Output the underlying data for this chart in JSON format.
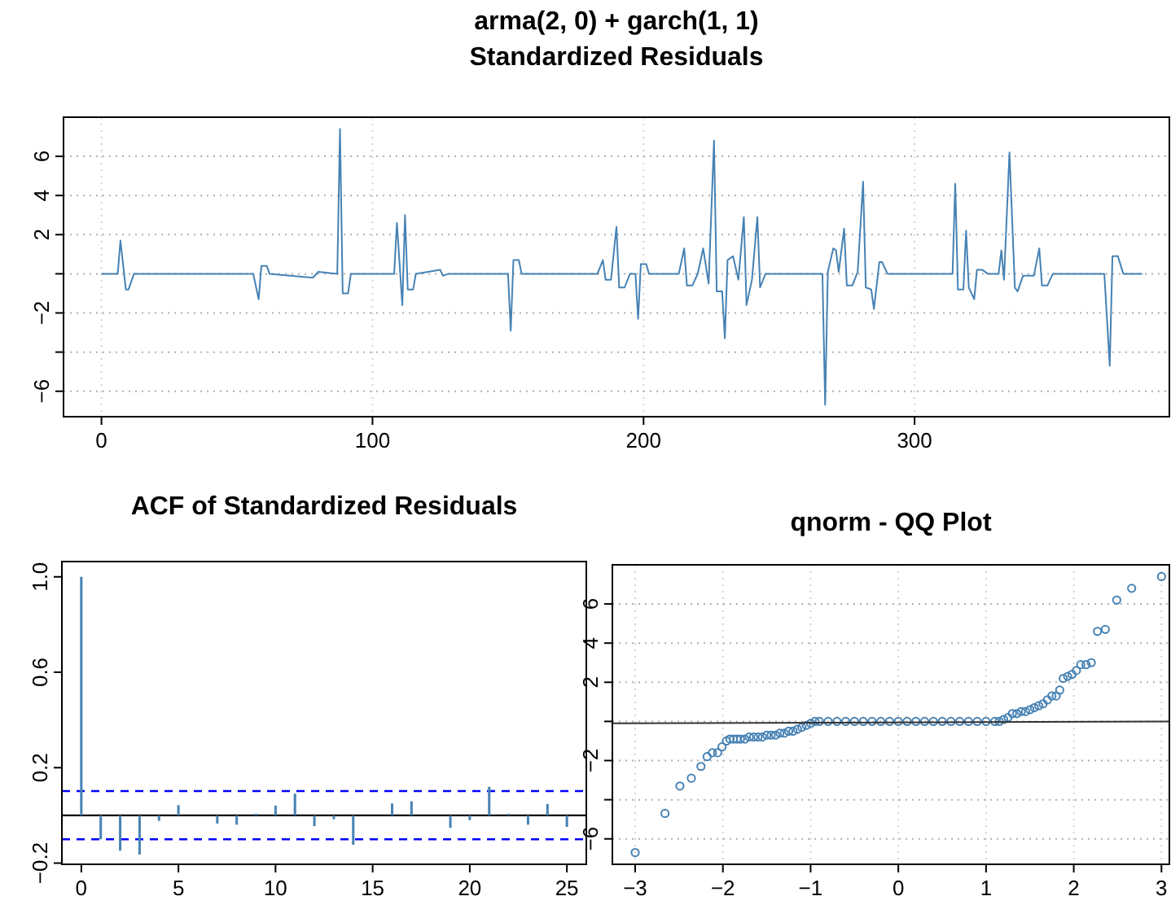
{
  "chart_data": [
    {
      "type": "line",
      "title": "arma(2, 0) + garch(1, 1)\nStandardized Residuals",
      "xlim": [
        -14,
        394
      ],
      "ylim": [
        -7.3,
        8.0
      ],
      "xticks": [
        0,
        100,
        200,
        300
      ],
      "yticks": [
        -6,
        {
          "value": -4,
          "label": null
        },
        -2,
        {
          "value": 0,
          "label": null
        },
        2,
        4,
        6
      ],
      "grid": true,
      "series": [
        {
          "color": "#4682b4",
          "x": [
            0,
            6,
            7,
            9,
            10,
            12,
            56,
            58,
            59,
            61,
            62,
            78,
            80,
            87,
            88,
            89,
            91,
            92,
            108,
            109,
            111,
            112,
            113,
            115,
            116,
            125,
            126,
            128,
            150,
            151,
            152,
            154,
            155,
            183,
            185,
            186,
            188,
            190,
            191,
            193,
            195,
            197,
            198,
            199,
            201,
            202,
            213,
            215,
            216,
            218,
            220,
            222,
            224,
            226,
            227,
            229,
            230,
            231,
            233,
            235,
            237,
            238,
            240,
            242,
            243,
            245,
            247,
            266,
            267,
            268,
            270,
            271,
            272,
            274,
            275,
            277,
            279,
            281,
            282,
            284,
            285,
            287,
            288,
            290,
            314,
            315,
            316,
            318,
            319,
            320,
            322,
            323,
            325,
            327,
            331,
            332,
            333,
            335,
            337,
            338,
            340,
            344,
            346,
            347,
            349,
            351,
            370,
            372,
            373,
            375,
            377,
            384
          ],
          "values": [
            0,
            0,
            1.7,
            -0.8,
            -0.8,
            0,
            0,
            -1.3,
            0.4,
            0.4,
            0,
            -0.2,
            0.1,
            0,
            7.4,
            -1.0,
            -1.0,
            0,
            0,
            2.6,
            -1.6,
            3.0,
            -0.8,
            -0.8,
            0,
            0.2,
            -0.1,
            0,
            0,
            -2.9,
            0.7,
            0.7,
            0,
            0,
            0.7,
            -0.3,
            -0.3,
            2.4,
            -0.7,
            -0.7,
            0,
            0,
            -2.3,
            0.5,
            0.5,
            0,
            0,
            1.3,
            -0.6,
            -0.6,
            0,
            1.3,
            -0.5,
            6.8,
            -0.9,
            -0.9,
            -3.3,
            0.7,
            0.9,
            -0.3,
            2.9,
            -1.6,
            -0.3,
            2.9,
            -0.7,
            0,
            0,
            0,
            -6.7,
            0.1,
            1.3,
            1.2,
            0.1,
            2.3,
            -0.6,
            -0.6,
            0.1,
            4.7,
            -0.7,
            -0.8,
            -1.8,
            0.6,
            0.6,
            0,
            0,
            4.6,
            -0.8,
            -0.8,
            2.2,
            -0.7,
            -1.3,
            0.2,
            0.2,
            0,
            0,
            1.2,
            -0.3,
            6.2,
            -0.7,
            -0.9,
            -0.1,
            -0.1,
            1.3,
            -0.6,
            -0.6,
            0,
            0,
            -4.7,
            0.9,
            0.9,
            0,
            0
          ]
        }
      ]
    },
    {
      "type": "bar",
      "title": "ACF of Standardized Residuals",
      "xlim": [
        -1,
        26
      ],
      "ylim": [
        -0.205,
        1.064
      ],
      "xticks": [
        0,
        5,
        10,
        15,
        20,
        25
      ],
      "yticks": [
        -0.2,
        0.2,
        0.6,
        {
          "value": 1,
          "label": "1.0"
        }
      ],
      "ref_lines": [
        {
          "axis": "y",
          "value": 0,
          "color": "#000000",
          "line_style": "solid"
        },
        {
          "axis": "y",
          "value": 0.102,
          "color": "#0000ff",
          "line_style": "dashed"
        },
        {
          "axis": "y",
          "value": -0.1,
          "color": "#0000ff",
          "line_style": "dashed"
        }
      ],
      "series": [
        {
          "color": "#4682b4",
          "x": [
            0,
            1,
            2,
            3,
            4,
            5,
            7,
            8,
            9,
            10,
            11,
            12,
            13,
            14,
            16,
            17,
            19,
            20,
            21,
            22,
            23,
            24,
            25
          ],
          "values": [
            1.0,
            -0.1,
            -0.148,
            -0.164,
            -0.023,
            0.043,
            -0.034,
            -0.039,
            0.007,
            0.041,
            0.091,
            -0.045,
            -0.016,
            -0.123,
            0.05,
            0.059,
            -0.052,
            -0.02,
            0.12,
            0.007,
            -0.039,
            0.048,
            -0.048
          ]
        }
      ]
    },
    {
      "type": "scatter",
      "title": "qnorm - QQ Plot",
      "xlim": [
        -3.26,
        3.09
      ],
      "ylim": [
        -7.3,
        8.0
      ],
      "xticks": [
        -3,
        -2,
        -1,
        0,
        1,
        2,
        3
      ],
      "yticks": [
        -6,
        {
          "value": -4,
          "label": null
        },
        -2,
        {
          "value": 0,
          "label": null
        },
        2,
        4,
        6
      ],
      "grid": true,
      "series": [
        {
          "color": "#4682b4",
          "marker": "circle",
          "x": [
            -3.0,
            -2.66,
            -2.49,
            -2.36,
            -2.25,
            -2.18,
            -2.12,
            -2.06,
            -2.01,
            -1.96,
            -1.92,
            -1.88,
            -1.84,
            -1.8,
            -1.75,
            -1.7,
            -1.65,
            -1.6,
            -1.55,
            -1.5,
            -1.45,
            -1.4,
            -1.35,
            -1.3,
            -1.25,
            -1.2,
            -1.15,
            -1.1,
            -1.05,
            -1.0,
            -0.95,
            -0.9,
            -0.8,
            -0.7,
            -0.6,
            -0.5,
            -0.4,
            -0.3,
            -0.2,
            -0.1,
            0,
            0.1,
            0.2,
            0.3,
            0.4,
            0.5,
            0.6,
            0.7,
            0.8,
            0.9,
            1.0,
            1.1,
            1.15,
            1.2,
            1.25,
            1.3,
            1.35,
            1.4,
            1.45,
            1.5,
            1.55,
            1.6,
            1.65,
            1.7,
            1.75,
            1.8,
            1.84,
            1.88,
            1.93,
            1.98,
            2.03,
            2.08,
            2.14,
            2.2,
            2.27,
            2.36,
            2.49,
            2.66,
            3.0
          ],
          "values": [
            -6.7,
            -4.7,
            -3.3,
            -2.9,
            -2.3,
            -1.8,
            -1.6,
            -1.6,
            -1.3,
            -1.0,
            -0.9,
            -0.9,
            -0.9,
            -0.9,
            -0.9,
            -0.8,
            -0.8,
            -0.8,
            -0.8,
            -0.7,
            -0.7,
            -0.7,
            -0.6,
            -0.6,
            -0.5,
            -0.5,
            -0.4,
            -0.3,
            -0.2,
            -0.1,
            0,
            0,
            0,
            0,
            0,
            0,
            0,
            0,
            0,
            0,
            0,
            0,
            0,
            0,
            0,
            0,
            0,
            0,
            0,
            0,
            0,
            0,
            0,
            0.1,
            0.2,
            0.4,
            0.4,
            0.5,
            0.5,
            0.6,
            0.7,
            0.8,
            0.9,
            1.1,
            1.3,
            1.3,
            1.6,
            2.2,
            2.3,
            2.4,
            2.6,
            2.9,
            2.9,
            3.0,
            4.6,
            4.7,
            6.2,
            6.8,
            7.4
          ]
        },
        {
          "type": "line",
          "color": "#333333",
          "x": [
            -3.26,
            3.09
          ],
          "values": [
            -0.1,
            0.0
          ]
        }
      ]
    }
  ]
}
